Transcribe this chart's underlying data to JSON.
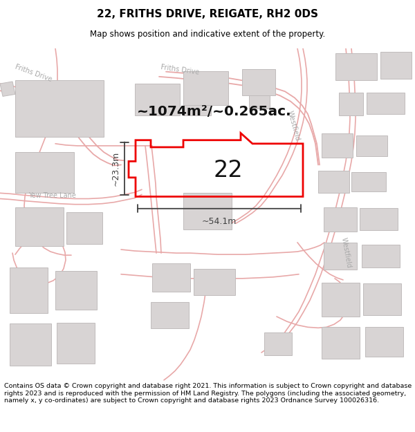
{
  "title": "22, FRITHS DRIVE, REIGATE, RH2 0DS",
  "subtitle": "Map shows position and indicative extent of the property.",
  "footer": "Contains OS data © Crown copyright and database right 2021. This information is subject to Crown copyright and database rights 2023 and is reproduced with the permission of HM Land Registry. The polygons (including the associated geometry, namely x, y co-ordinates) are subject to Crown copyright and database rights 2023 Ordnance Survey 100026316.",
  "area_label": "~1074m²/~0.265ac.",
  "number_label": "22",
  "width_label": "~54.1m",
  "height_label": "~23.3m",
  "map_bg": "#ffffff",
  "road_color": "#e8a8a8",
  "building_color": "#d8d4d4",
  "building_edge": "#c0bcbc",
  "plot_color": "#ee0000",
  "dim_color": "#404040",
  "text_color": "#111111",
  "street_label_color": "#aaaaaa",
  "title_fontsize": 11,
  "subtitle_fontsize": 8.5,
  "footer_fontsize": 6.8
}
